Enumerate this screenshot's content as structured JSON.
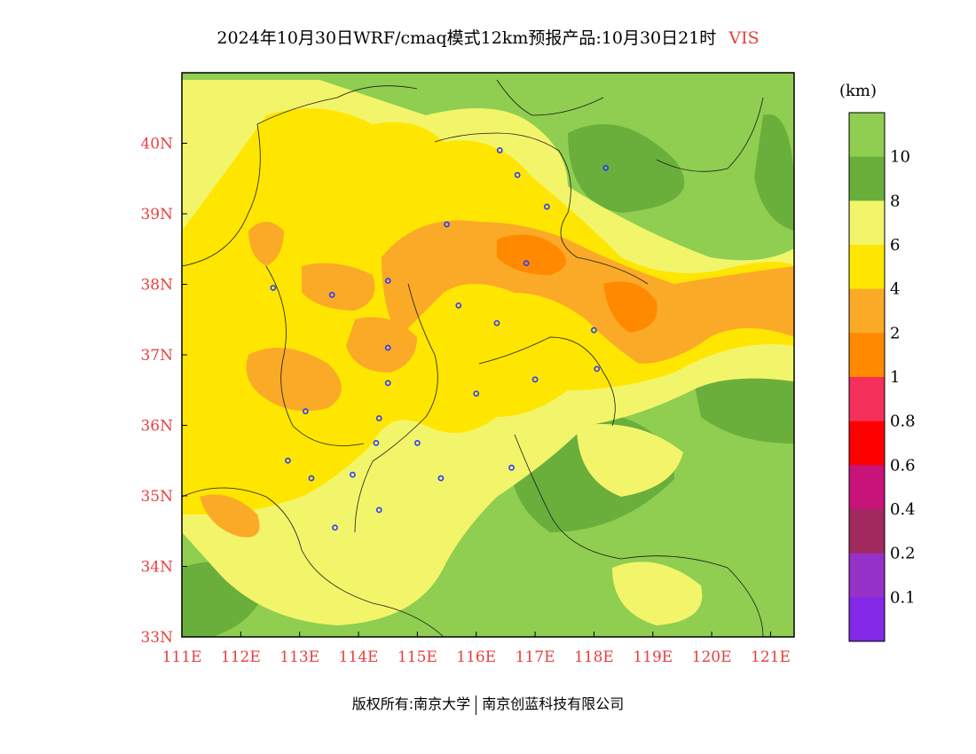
{
  "title": {
    "main": "2024年10月30日WRF/cmaq模式12km预报产品:10月30日21时",
    "variable": "VIS"
  },
  "footer": {
    "left": "版权所有:南京大学",
    "right": "南京创蓝科技有限公司"
  },
  "map": {
    "lon_range": [
      111,
      121.4
    ],
    "lat_range": [
      33,
      41
    ],
    "x_ticks": [
      "111E",
      "112E",
      "113E",
      "114E",
      "115E",
      "116E",
      "117E",
      "118E",
      "119E",
      "120E",
      "121E"
    ],
    "y_ticks": [
      "33N",
      "34N",
      "35N",
      "36N",
      "37N",
      "38N",
      "39N",
      "40N"
    ]
  },
  "colorbar": {
    "unit": "(km)",
    "classes": [
      {
        "label": "10",
        "color": "#8fce50"
      },
      {
        "label": "8",
        "color": "#6aaf3c"
      },
      {
        "label": "6",
        "color": "#f2f56a"
      },
      {
        "label": "4",
        "color": "#ffe600"
      },
      {
        "label": "2",
        "color": "#fbaa28"
      },
      {
        "label": "1",
        "color": "#ff8a00"
      },
      {
        "label": "0.8",
        "color": "#f4305a"
      },
      {
        "label": "0.6",
        "color": "#ff0000"
      },
      {
        "label": "0.4",
        "color": "#c8147a"
      },
      {
        "label": "0.2",
        "color": "#a02a5e"
      },
      {
        "label": "0.1",
        "color": "#9632c8"
      },
      {
        "label": "",
        "color": "#8228e6"
      }
    ]
  },
  "cities": [
    [
      116.4,
      39.9
    ],
    [
      116.7,
      39.55
    ],
    [
      117.2,
      39.1
    ],
    [
      118.2,
      39.65
    ],
    [
      115.5,
      38.85
    ],
    [
      116.85,
      38.3
    ],
    [
      112.55,
      37.95
    ],
    [
      113.55,
      37.85
    ],
    [
      114.5,
      38.05
    ],
    [
      115.7,
      37.7
    ],
    [
      116.35,
      37.45
    ],
    [
      118.0,
      37.35
    ],
    [
      114.5,
      37.1
    ],
    [
      114.5,
      36.6
    ],
    [
      113.1,
      36.2
    ],
    [
      116.0,
      36.45
    ],
    [
      117.0,
      36.65
    ],
    [
      118.05,
      36.8
    ],
    [
      114.35,
      36.1
    ],
    [
      114.3,
      35.75
    ],
    [
      115.0,
      35.75
    ],
    [
      112.8,
      35.5
    ],
    [
      113.2,
      35.25
    ],
    [
      113.9,
      35.3
    ],
    [
      115.4,
      35.25
    ],
    [
      116.6,
      35.4
    ],
    [
      114.35,
      34.8
    ],
    [
      113.6,
      34.55
    ]
  ]
}
